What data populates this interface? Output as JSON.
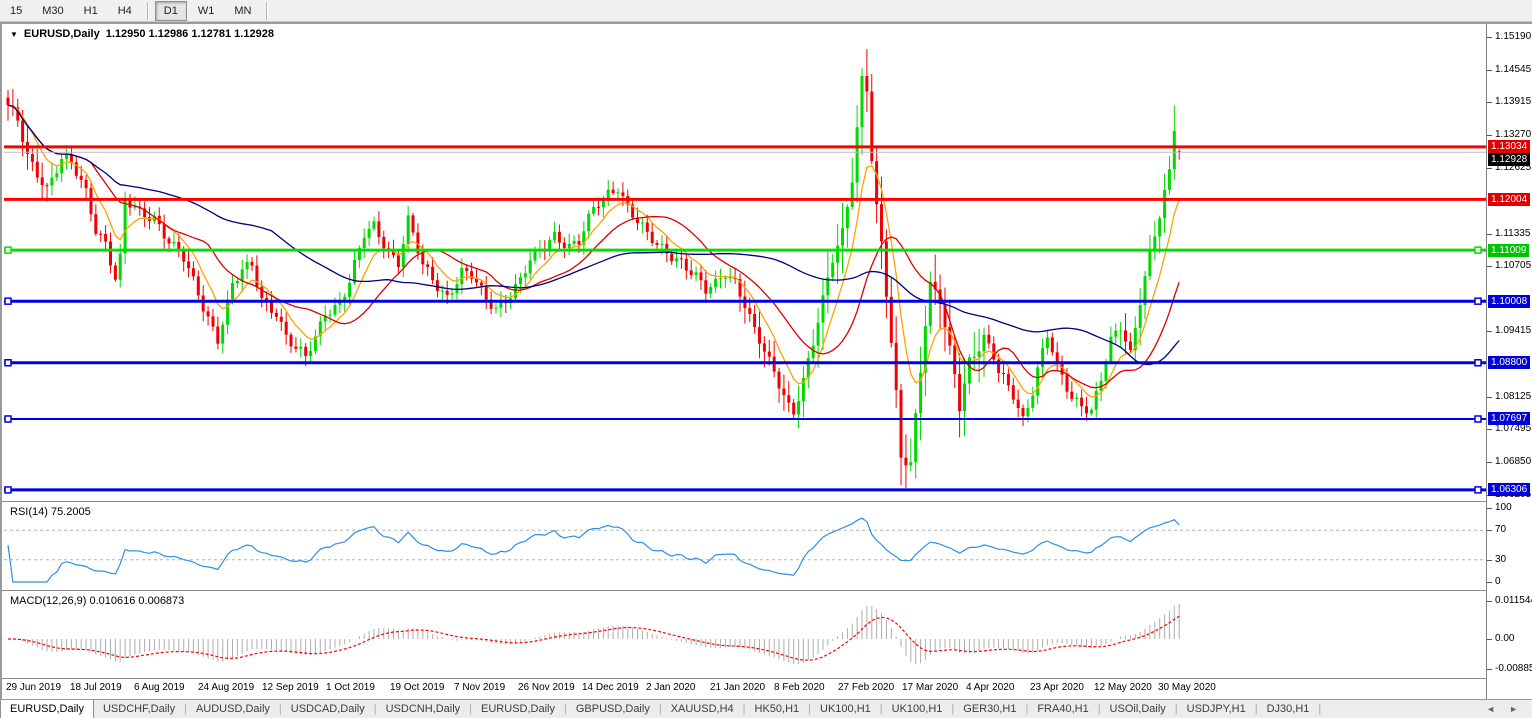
{
  "toolbar": {
    "timeframes": [
      {
        "label": "15",
        "active": false,
        "divider_after": false
      },
      {
        "label": "M30",
        "active": false,
        "divider_after": false
      },
      {
        "label": "H1",
        "active": false,
        "divider_after": false
      },
      {
        "label": "H4",
        "active": false,
        "divider_after": true
      },
      {
        "label": "D1",
        "active": true,
        "divider_after": false
      },
      {
        "label": "W1",
        "active": false,
        "divider_after": false
      },
      {
        "label": "MN",
        "active": false,
        "divider_after": true
      }
    ]
  },
  "chart": {
    "title_symbol": "EURUSD,Daily",
    "title_ohlc": "1.12950 1.12986 1.12781 1.12928",
    "dropdown_icon": "▼"
  },
  "price_axis": {
    "ticks": [
      "1.15190",
      "1.14545",
      "1.13915",
      "1.13270",
      "1.12625",
      "1.11335",
      "1.10705",
      "1.09415",
      "1.08125",
      "1.07495",
      "1.06850",
      "1.06205"
    ],
    "badges": [
      {
        "label": "1.13034",
        "value": 1.13034,
        "bg": "#e00000"
      },
      {
        "label": "1.12928",
        "value": 1.12928,
        "bg": "#000000"
      },
      {
        "label": "1.12004",
        "value": 1.12004,
        "bg": "#e00000"
      },
      {
        "label": "1.11009",
        "value": 1.11009,
        "bg": "#00c400"
      },
      {
        "label": "1.10008",
        "value": 1.10008,
        "bg": "#0000d8"
      },
      {
        "label": "1.08800",
        "value": 1.088,
        "bg": "#0000d8"
      },
      {
        "label": "1.07697",
        "value": 1.07697,
        "bg": "#0000d8"
      },
      {
        "label": "1.06306",
        "value": 1.06306,
        "bg": "#0000d8"
      }
    ]
  },
  "chart_data": {
    "type": "candlestick",
    "title": "EURUSD,Daily",
    "candle_count": 241,
    "price_range_visible": [
      1.059,
      1.1542
    ],
    "candle_colors": {
      "up": "#00d800",
      "down": "#f20000"
    },
    "last_candle": {
      "open": 1.1295,
      "high": 1.12986,
      "low": 1.12781,
      "close": 1.12928
    },
    "price_path_anchors": [
      [
        0,
        1.138
      ],
      [
        2,
        1.1352
      ],
      [
        4,
        1.1285
      ],
      [
        8,
        1.1225
      ],
      [
        11,
        1.1278
      ],
      [
        13,
        1.1268
      ],
      [
        16,
        1.1215
      ],
      [
        18,
        1.1145
      ],
      [
        20,
        1.1118
      ],
      [
        22,
        1.1045
      ],
      [
        23,
        1.1082
      ],
      [
        24,
        1.1195
      ],
      [
        27,
        1.1172
      ],
      [
        30,
        1.1168
      ],
      [
        33,
        1.112
      ],
      [
        36,
        1.1082
      ],
      [
        40,
        1.099
      ],
      [
        43,
        1.093
      ],
      [
        46,
        1.1032
      ],
      [
        48,
        1.1058
      ],
      [
        50,
        1.1068
      ],
      [
        52,
        1.1005
      ],
      [
        55,
        1.0982
      ],
      [
        57,
        1.0932
      ],
      [
        59,
        1.0905
      ],
      [
        61,
        1.0888
      ],
      [
        63,
        1.0928
      ],
      [
        65,
        1.0982
      ],
      [
        68,
        1.0998
      ],
      [
        70,
        1.1038
      ],
      [
        73,
        1.1128
      ],
      [
        75,
        1.1148
      ],
      [
        78,
        1.1102
      ],
      [
        80,
        1.1078
      ],
      [
        82,
        1.1158
      ],
      [
        85,
        1.1068
      ],
      [
        88,
        1.1032
      ],
      [
        90,
        1.1012
      ],
      [
        93,
        1.1058
      ],
      [
        95,
        1.1048
      ],
      [
        98,
        1.1002
      ],
      [
        100,
        1.0988
      ],
      [
        103,
        1.1018
      ],
      [
        105,
        1.1042
      ],
      [
        107,
        1.1078
      ],
      [
        110,
        1.1108
      ],
      [
        112,
        1.1132
      ],
      [
        115,
        1.1112
      ],
      [
        117,
        1.1118
      ],
      [
        120,
        1.1178
      ],
      [
        123,
        1.1212
      ],
      [
        125,
        1.1228
      ],
      [
        127,
        1.1188
      ],
      [
        129,
        1.1158
      ],
      [
        131,
        1.1128
      ],
      [
        133,
        1.1108
      ],
      [
        136,
        1.1092
      ],
      [
        138,
        1.1082
      ],
      [
        141,
        1.1048
      ],
      [
        143,
        1.1018
      ],
      [
        145,
        1.1032
      ],
      [
        147,
        1.1058
      ],
      [
        149,
        1.1042
      ],
      [
        151,
        1.0998
      ],
      [
        153,
        1.0942
      ],
      [
        156,
        1.0878
      ],
      [
        158,
        1.0838
      ],
      [
        160,
        1.0798
      ],
      [
        161,
        1.0788
      ],
      [
        163,
        1.0848
      ],
      [
        165,
        1.0918
      ],
      [
        167,
        1.0998
      ],
      [
        169,
        1.1082
      ],
      [
        171,
        1.1138
      ],
      [
        173,
        1.1248
      ],
      [
        175,
        1.1438
      ],
      [
        176,
        1.1418
      ],
      [
        177,
        1.1278
      ],
      [
        178,
        1.1178
      ],
      [
        179,
        1.1108
      ],
      [
        181,
        1.0918
      ],
      [
        182,
        1.0818
      ],
      [
        183,
        1.0698
      ],
      [
        185,
        1.0688
      ],
      [
        186,
        1.0778
      ],
      [
        187,
        1.0868
      ],
      [
        188,
        1.0958
      ],
      [
        189,
        1.1028
      ],
      [
        191,
        1.0998
      ],
      [
        192,
        1.0948
      ],
      [
        194,
        1.0858
      ],
      [
        195,
        1.0798
      ],
      [
        197,
        1.0888
      ],
      [
        199,
        1.0912
      ],
      [
        200,
        1.0928
      ],
      [
        202,
        1.0888
      ],
      [
        203,
        1.0858
      ],
      [
        205,
        1.0832
      ],
      [
        206,
        1.0818
      ],
      [
        208,
        1.0772
      ],
      [
        210,
        1.0828
      ],
      [
        211,
        1.0868
      ],
      [
        213,
        1.0932
      ],
      [
        215,
        1.0868
      ],
      [
        218,
        1.0812
      ],
      [
        220,
        1.0802
      ],
      [
        222,
        1.0788
      ],
      [
        224,
        1.0848
      ],
      [
        226,
        1.0918
      ],
      [
        228,
        1.0948
      ],
      [
        230,
        1.0898
      ],
      [
        232,
        1.1008
      ],
      [
        234,
        1.1098
      ],
      [
        236,
        1.1168
      ],
      [
        238,
        1.1248
      ],
      [
        239,
        1.1337
      ],
      [
        240,
        1.12928
      ]
    ],
    "wick_overrides": [
      [
        239,
        1.1384,
        1.126
      ]
    ],
    "moving_averages": [
      {
        "name": "ma-fast",
        "period": 8,
        "color": "#ffa200",
        "style": "solid"
      },
      {
        "name": "ma-mid",
        "period": 18,
        "color": "#dd0000",
        "style": "solid"
      },
      {
        "name": "ma-slow",
        "period": 55,
        "color": "#000080",
        "style": "solid"
      }
    ],
    "horizontal_levels": [
      {
        "value": 1.13034,
        "color": "#ff0000",
        "width": 3,
        "handles": false
      },
      {
        "value": 1.12004,
        "color": "#ff0000",
        "width": 3,
        "handles": false
      },
      {
        "value": 1.11009,
        "color": "#00e000",
        "width": 3,
        "handles": true
      },
      {
        "value": 1.10008,
        "color": "#0000e0",
        "width": 3,
        "handles": true
      },
      {
        "value": 1.088,
        "color": "#0000e0",
        "width": 3,
        "handles": true
      },
      {
        "value": 1.07697,
        "color": "#0000e0",
        "width": 2,
        "handles": true
      },
      {
        "value": 1.06306,
        "color": "#0000e0",
        "width": 3,
        "handles": true
      }
    ],
    "current_price_line": {
      "value": 1.12928,
      "color": "#bbbbbb"
    },
    "x_axis_dates": [
      "29 Jun 2019",
      "18 Jul 2019",
      "6 Aug 2019",
      "24 Aug 2019",
      "12 Sep 2019",
      "1 Oct 2019",
      "19 Oct 2019",
      "7 Nov 2019",
      "26 Nov 2019",
      "14 Dec 2019",
      "2 Jan 2020",
      "21 Jan 2020",
      "8 Feb 2020",
      "27 Feb 2020",
      "17 Mar 2020",
      "4 Apr 2020",
      "23 Apr 2020",
      "12 May 2020",
      "30 May 2020"
    ],
    "sub_charts": [
      {
        "type": "line",
        "name": "RSI",
        "label": "RSI(14) 75.2005",
        "current": 75.2005,
        "levels": [
          70,
          30
        ],
        "ticks": [
          "100",
          "70",
          "30",
          "0"
        ],
        "line_color": "#2f8fe8"
      },
      {
        "type": "bar+line",
        "name": "MACD",
        "label": "MACD(12,26,9) 0.010616 0.006873",
        "current": [
          0.010616,
          0.006873
        ],
        "ticks": [
          "0.011544",
          "0.00",
          "-0.008858"
        ],
        "tick_values": [
          0.011544,
          0,
          -0.008858
        ],
        "histogram_color": "#adadad",
        "signal_color": "#ff0000"
      }
    ]
  },
  "tabs": {
    "items": [
      {
        "label": "EURUSD,Daily",
        "active": true
      },
      {
        "label": "USDCHF,Daily",
        "active": false
      },
      {
        "label": "AUDUSD,Daily",
        "active": false
      },
      {
        "label": "USDCAD,Daily",
        "active": false
      },
      {
        "label": "USDCNH,Daily",
        "active": false
      },
      {
        "label": "EURUSD,Daily",
        "active": false
      },
      {
        "label": "GBPUSD,Daily",
        "active": false
      },
      {
        "label": "XAUUSD,H4",
        "active": false
      },
      {
        "label": "HK50,H1",
        "active": false
      },
      {
        "label": "UK100,H1",
        "active": false
      },
      {
        "label": "UK100,H1",
        "active": false
      },
      {
        "label": "GER30,H1",
        "active": false
      },
      {
        "label": "FRA40,H1",
        "active": false
      },
      {
        "label": "USOil,Daily",
        "active": false
      },
      {
        "label": "USDJPY,H1",
        "active": false
      },
      {
        "label": "DJ30,H1",
        "active": false
      }
    ],
    "arrow_left": "◄",
    "arrow_right": "►"
  }
}
